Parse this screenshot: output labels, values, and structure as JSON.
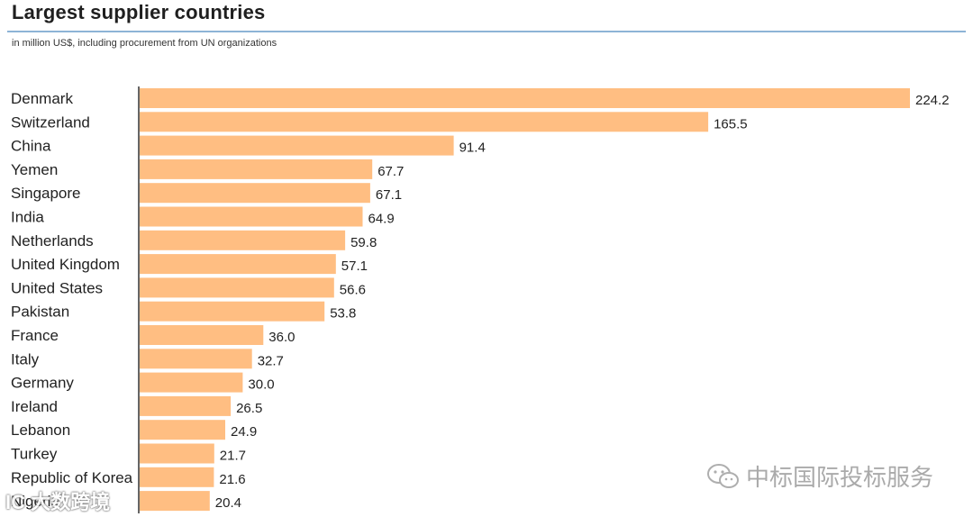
{
  "header": {
    "title": "Largest supplier countries",
    "subtitle": "in million US$, including procurement from UN organizations"
  },
  "watermarks": {
    "wechat_account": "中标国际投标服务",
    "corner_mark": "IC 大数跨境"
  },
  "colors": {
    "bar": "#FFBE82",
    "rule": "#8DB4D6",
    "axis": "#333333"
  },
  "chart_data": {
    "type": "bar",
    "orientation": "horizontal",
    "title": "Largest supplier countries",
    "subtitle": "in million US$, including procurement from UN organizations",
    "xlabel": "",
    "ylabel": "",
    "xlim": [
      0,
      224.2
    ],
    "grid": false,
    "categories": [
      "Denmark",
      "Switzerland",
      "China",
      "Yemen",
      "Singapore",
      "India",
      "Netherlands",
      "United Kingdom",
      "United States",
      "Pakistan",
      "France",
      "Italy",
      "Germany",
      "Ireland",
      "Lebanon",
      "Turkey",
      "Republic of Korea",
      "Nigeria"
    ],
    "values": [
      224.2,
      165.5,
      91.4,
      67.7,
      67.1,
      64.9,
      59.8,
      57.1,
      56.6,
      53.8,
      36.0,
      32.7,
      30.0,
      26.5,
      24.9,
      21.7,
      21.6,
      20.4
    ],
    "value_labels": [
      "224.2",
      "165.5",
      "91.4",
      "67.7",
      "67.1",
      "64.9",
      "59.8",
      "57.1",
      "56.6",
      "53.8",
      "36.0",
      "32.7",
      "30.0",
      "26.5",
      "24.9",
      "21.7",
      "21.6",
      "20.4"
    ]
  }
}
